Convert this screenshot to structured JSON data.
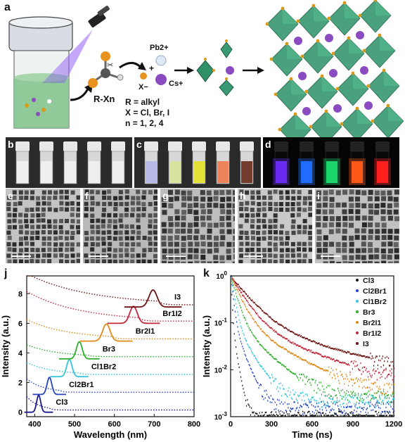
{
  "panels": {
    "a": "a",
    "b": "b",
    "c": "c",
    "d": "d",
    "e": "e",
    "f": "f",
    "g": "g",
    "h": "h",
    "i": "i",
    "j": "j",
    "k": "k"
  },
  "schematic": {
    "precursor_label": "R-Xn",
    "pb_label": "Pb2+",
    "plus": "+",
    "cs_label": "Cs+",
    "x_label": "X−",
    "definitions": [
      "R = alkyl",
      "X = Cl, Br, I",
      "n = 1, 2, 4"
    ]
  },
  "colors": {
    "octahedron": "#3a9a73",
    "cs_ion": "#8a4bc0",
    "halide": "#d99a1a",
    "vial_liquid": "#7fc28a"
  },
  "photos": {
    "ambient_vials": 5,
    "uv_colors": [
      "#b1b6e6",
      "#d7e59a",
      "#e6e325",
      "#f07a4e",
      "#6a2a18"
    ],
    "pl_colors": [
      "#6a2cf0",
      "#1f6cff",
      "#1ed66a",
      "#ff5a1a",
      "#ff2020"
    ]
  },
  "chart_data": [
    {
      "type": "line",
      "panel": "j",
      "xlabel": "Wavelength (nm)",
      "ylabel": "Intensity (a.u.)",
      "xlim": [
        380,
        800
      ],
      "ylim": [
        -0.3,
        9.2
      ],
      "xticks": [
        400,
        500,
        600,
        700,
        800
      ],
      "yticks": [
        0,
        2,
        4,
        6,
        8
      ],
      "grid": false,
      "series": [
        {
          "name": "Cl3",
          "color": "#1a1a8a",
          "offset": 0.0,
          "pl_peak": 410,
          "pl_fwhm": 12,
          "abs_edge": 405,
          "abs_start": 0.9
        },
        {
          "name": "Cl2Br1",
          "color": "#2845c8",
          "offset": 1.2,
          "pl_peak": 437,
          "pl_fwhm": 14,
          "abs_edge": 432,
          "abs_start": 2.1
        },
        {
          "name": "Cl1Br2",
          "color": "#33c6dc",
          "offset": 2.4,
          "pl_peak": 487,
          "pl_fwhm": 16,
          "abs_edge": 480,
          "abs_start": 3.2
        },
        {
          "name": "Br3",
          "color": "#2fae2f",
          "offset": 3.6,
          "pl_peak": 512,
          "pl_fwhm": 17,
          "abs_edge": 505,
          "abs_start": 4.4
        },
        {
          "name": "Br2I1",
          "color": "#e08a19",
          "offset": 4.8,
          "pl_peak": 580,
          "pl_fwhm": 22,
          "abs_edge": 565,
          "abs_start": 6.1
        },
        {
          "name": "Br1I2",
          "color": "#c0283a",
          "offset": 6.0,
          "pl_peak": 648,
          "pl_fwhm": 22,
          "abs_edge": 630,
          "abs_start": 8.0
        },
        {
          "name": "I3",
          "color": "#6e1212",
          "offset": 7.1,
          "pl_peak": 697,
          "pl_fwhm": 24,
          "abs_edge": 680,
          "abs_start": 9.2
        }
      ]
    },
    {
      "type": "scatter",
      "panel": "k",
      "xlabel": "Time (ns)",
      "ylabel": "Intensity (a.u.)",
      "xlim": [
        0,
        1200
      ],
      "ylim": [
        0.001,
        1
      ],
      "yscale": "log",
      "xticks": [
        0,
        300,
        600,
        900,
        1200
      ],
      "yticks": [
        "10^-3",
        "10^-2",
        "10^-1",
        "10^0"
      ],
      "legend_placement": "top-right",
      "series": [
        {
          "name": "Cl3",
          "color": "#1a1a1a",
          "tau_ns": 6,
          "floor": 0.001
        },
        {
          "name": "Cl2Br1",
          "color": "#2845c8",
          "tau_ns": 14,
          "floor": 0.0016
        },
        {
          "name": "Cl1Br2",
          "color": "#33c6dc",
          "tau_ns": 22,
          "floor": 0.0022
        },
        {
          "name": "Br3",
          "color": "#2fae2f",
          "tau_ns": 38,
          "floor": 0.0026
        },
        {
          "name": "Br2I1",
          "color": "#e08a19",
          "tau_ns": 60,
          "floor": 0.003
        },
        {
          "name": "Br1I2",
          "color": "#c0283a",
          "tau_ns": 82,
          "floor": 0.0042
        },
        {
          "name": "I3",
          "color": "#6e1212",
          "tau_ns": 110,
          "floor": 0.006
        }
      ]
    }
  ]
}
